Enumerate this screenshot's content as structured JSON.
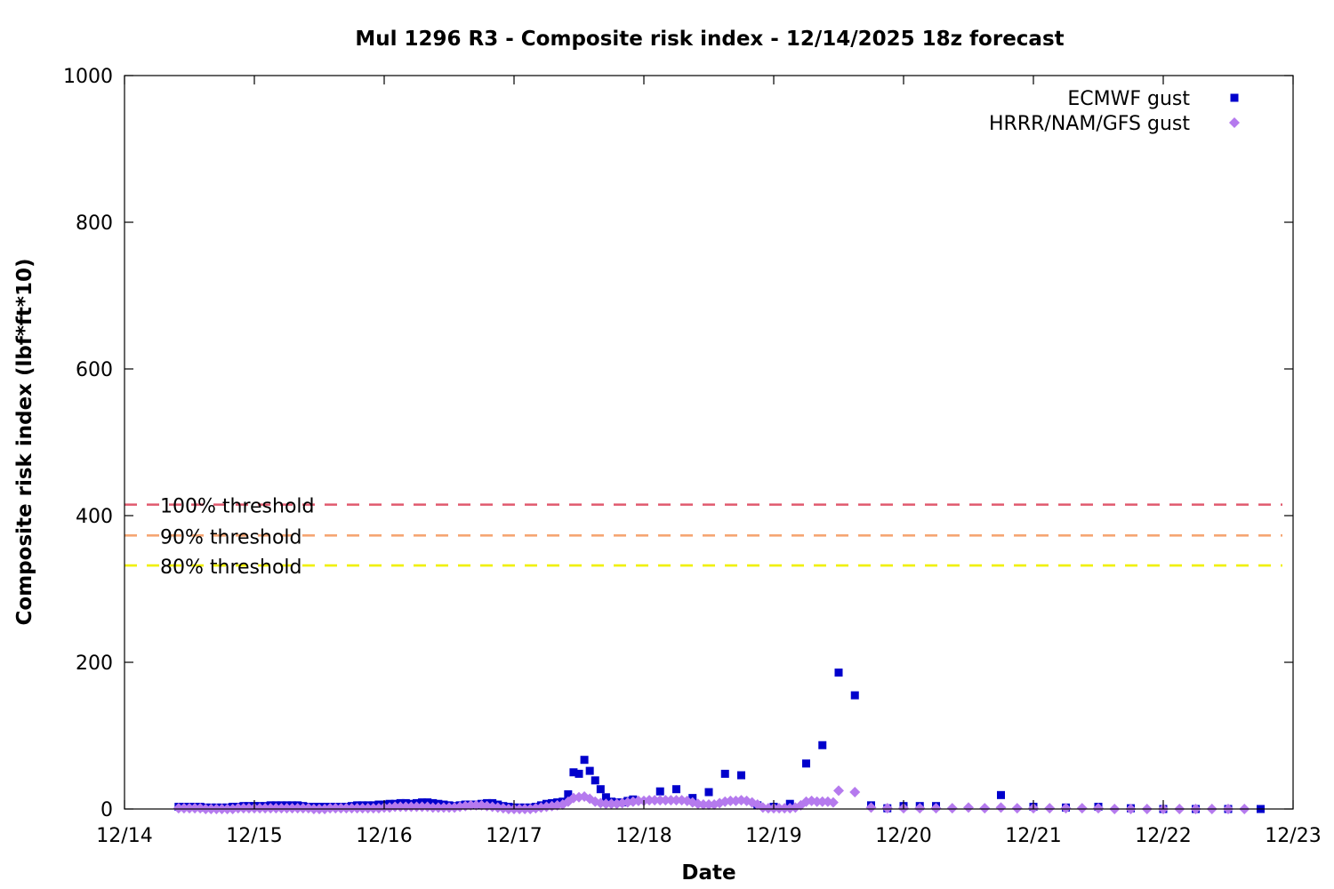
{
  "chart_data": {
    "type": "scatter",
    "title": "Mul 1296 R3 - Composite risk index - 12/14/2025 18z forecast",
    "xlabel": "Date",
    "ylabel": "Composite risk index (lbf*ft*10)",
    "x_unit": "days",
    "x_tick_labels": [
      "12/14",
      "12/15",
      "12/16",
      "12/17",
      "12/18",
      "12/19",
      "12/20",
      "12/21",
      "12/22",
      "12/23"
    ],
    "xlim": [
      "12/14 00z",
      "12/23 00z"
    ],
    "ylim": [
      0,
      1000
    ],
    "y_ticks": [
      0,
      200,
      400,
      600,
      800,
      1000
    ],
    "grid": false,
    "legend_position": "top-right",
    "thresholds": [
      {
        "label": "100% threshold",
        "value": 415,
        "color": "#e05a6e"
      },
      {
        "label": "90% threshold",
        "value": 373,
        "color": "#f5a673"
      },
      {
        "label": "80% threshold",
        "value": 332,
        "color": "#f0f000"
      }
    ],
    "series": [
      {
        "name": "ECMWF gust",
        "marker": "square",
        "color": "#0000cc",
        "points": [
          [
            "12/14 10z",
            3
          ],
          [
            "12/14 11z",
            3
          ],
          [
            "12/14 12z",
            3
          ],
          [
            "12/14 13z",
            3
          ],
          [
            "12/14 14z",
            3
          ],
          [
            "12/14 15z",
            2
          ],
          [
            "12/14 16z",
            2
          ],
          [
            "12/14 17z",
            2
          ],
          [
            "12/14 18z",
            2
          ],
          [
            "12/14 19z",
            2
          ],
          [
            "12/14 20z",
            3
          ],
          [
            "12/14 21z",
            3
          ],
          [
            "12/14 22z",
            4
          ],
          [
            "12/14 23z",
            4
          ],
          [
            "12/15 00z",
            4
          ],
          [
            "12/15 01z",
            4
          ],
          [
            "12/15 02z",
            4
          ],
          [
            "12/15 03z",
            5
          ],
          [
            "12/15 04z",
            5
          ],
          [
            "12/15 05z",
            5
          ],
          [
            "12/15 06z",
            5
          ],
          [
            "12/15 07z",
            5
          ],
          [
            "12/15 08z",
            5
          ],
          [
            "12/15 09z",
            4
          ],
          [
            "12/15 10z",
            3
          ],
          [
            "12/15 11z",
            3
          ],
          [
            "12/15 12z",
            3
          ],
          [
            "12/15 13z",
            3
          ],
          [
            "12/15 14z",
            3
          ],
          [
            "12/15 15z",
            3
          ],
          [
            "12/15 16z",
            3
          ],
          [
            "12/15 17z",
            3
          ],
          [
            "12/15 18z",
            4
          ],
          [
            "12/15 19z",
            5
          ],
          [
            "12/15 20z",
            5
          ],
          [
            "12/15 21z",
            5
          ],
          [
            "12/15 22z",
            5
          ],
          [
            "12/15 23z",
            6
          ],
          [
            "12/16 00z",
            6
          ],
          [
            "12/16 01z",
            7
          ],
          [
            "12/16 02z",
            7
          ],
          [
            "12/16 03z",
            8
          ],
          [
            "12/16 04z",
            8
          ],
          [
            "12/16 05z",
            7
          ],
          [
            "12/16 06z",
            8
          ],
          [
            "12/16 07z",
            9
          ],
          [
            "12/16 08z",
            9
          ],
          [
            "12/16 09z",
            8
          ],
          [
            "12/16 10z",
            7
          ],
          [
            "12/16 11z",
            6
          ],
          [
            "12/16 12z",
            5
          ],
          [
            "12/16 13z",
            4
          ],
          [
            "12/16 14z",
            5
          ],
          [
            "12/16 15z",
            6
          ],
          [
            "12/16 16z",
            6
          ],
          [
            "12/16 17z",
            6
          ],
          [
            "12/16 18z",
            7
          ],
          [
            "12/16 19z",
            8
          ],
          [
            "12/16 20z",
            8
          ],
          [
            "12/16 21z",
            6
          ],
          [
            "12/16 22z",
            4
          ],
          [
            "12/16 23z",
            3
          ],
          [
            "12/17 00z",
            2
          ],
          [
            "12/17 01z",
            2
          ],
          [
            "12/17 02z",
            2
          ],
          [
            "12/17 03z",
            2
          ],
          [
            "12/17 04z",
            3
          ],
          [
            "12/17 05z",
            5
          ],
          [
            "12/17 06z",
            7
          ],
          [
            "12/17 07z",
            8
          ],
          [
            "12/17 08z",
            9
          ],
          [
            "12/17 09z",
            10
          ],
          [
            "12/17 10z",
            20
          ],
          [
            "12/17 11z",
            50
          ],
          [
            "12/17 12z",
            48
          ],
          [
            "12/17 13z",
            67
          ],
          [
            "12/17 14z",
            52
          ],
          [
            "12/17 15z",
            39
          ],
          [
            "12/17 16z",
            27
          ],
          [
            "12/17 17z",
            16
          ],
          [
            "12/17 18z",
            10
          ],
          [
            "12/17 19z",
            9
          ],
          [
            "12/17 20z",
            9
          ],
          [
            "12/17 21z",
            11
          ],
          [
            "12/17 22z",
            13
          ],
          [
            "12/18 03z",
            24
          ],
          [
            "12/18 06z",
            27
          ],
          [
            "12/18 09z",
            15
          ],
          [
            "12/18 12z",
            23
          ],
          [
            "12/18 15z",
            48
          ],
          [
            "12/18 18z",
            46
          ],
          [
            "12/18 21z",
            5
          ],
          [
            "12/19 00z",
            3
          ],
          [
            "12/19 03z",
            7
          ],
          [
            "12/19 06z",
            62
          ],
          [
            "12/19 09z",
            87
          ],
          [
            "12/19 12z",
            186
          ],
          [
            "12/19 15z",
            155
          ],
          [
            "12/19 18z",
            5
          ],
          [
            "12/19 21z",
            1
          ],
          [
            "12/20 00z",
            4
          ],
          [
            "12/20 03z",
            4
          ],
          [
            "12/20 06z",
            4
          ],
          [
            "12/20 18z",
            19
          ],
          [
            "12/21 00z",
            3
          ],
          [
            "12/21 06z",
            2
          ],
          [
            "12/21 12z",
            3
          ],
          [
            "12/21 18z",
            1
          ],
          [
            "12/22 00z",
            0
          ],
          [
            "12/22 06z",
            0
          ],
          [
            "12/22 12z",
            0
          ],
          [
            "12/22 18z",
            0
          ]
        ]
      },
      {
        "name": "HRRR/NAM/GFS gust",
        "marker": "diamond",
        "color": "#b57aee",
        "points": [
          [
            "12/14 10z",
            1
          ],
          [
            "12/14 11z",
            1
          ],
          [
            "12/14 12z",
            1
          ],
          [
            "12/14 13z",
            1
          ],
          [
            "12/14 14z",
            1
          ],
          [
            "12/14 15z",
            0
          ],
          [
            "12/14 16z",
            0
          ],
          [
            "12/14 17z",
            0
          ],
          [
            "12/14 18z",
            0
          ],
          [
            "12/14 19z",
            0
          ],
          [
            "12/14 20z",
            0
          ],
          [
            "12/14 21z",
            1
          ],
          [
            "12/14 22z",
            1
          ],
          [
            "12/14 23z",
            1
          ],
          [
            "12/15 00z",
            1
          ],
          [
            "12/15 01z",
            1
          ],
          [
            "12/15 02z",
            1
          ],
          [
            "12/15 03z",
            1
          ],
          [
            "12/15 04z",
            1
          ],
          [
            "12/15 05z",
            1
          ],
          [
            "12/15 06z",
            1
          ],
          [
            "12/15 07z",
            1
          ],
          [
            "12/15 08z",
            1
          ],
          [
            "12/15 09z",
            1
          ],
          [
            "12/15 10z",
            1
          ],
          [
            "12/15 11z",
            0
          ],
          [
            "12/15 12z",
            0
          ],
          [
            "12/15 13z",
            0
          ],
          [
            "12/15 14z",
            1
          ],
          [
            "12/15 15z",
            1
          ],
          [
            "12/15 16z",
            1
          ],
          [
            "12/15 17z",
            1
          ],
          [
            "12/15 18z",
            1
          ],
          [
            "12/15 19z",
            1
          ],
          [
            "12/15 20z",
            1
          ],
          [
            "12/15 21z",
            1
          ],
          [
            "12/15 22z",
            1
          ],
          [
            "12/15 23z",
            1
          ],
          [
            "12/16 00z",
            2
          ],
          [
            "12/16 01z",
            2
          ],
          [
            "12/16 02z",
            3
          ],
          [
            "12/16 03z",
            3
          ],
          [
            "12/16 04z",
            3
          ],
          [
            "12/16 05z",
            3
          ],
          [
            "12/16 06z",
            3
          ],
          [
            "12/16 07z",
            3
          ],
          [
            "12/16 08z",
            3
          ],
          [
            "12/16 09z",
            2
          ],
          [
            "12/16 10z",
            2
          ],
          [
            "12/16 11z",
            2
          ],
          [
            "12/16 12z",
            2
          ],
          [
            "12/16 13z",
            2
          ],
          [
            "12/16 14z",
            3
          ],
          [
            "12/16 15z",
            4
          ],
          [
            "12/16 16z",
            5
          ],
          [
            "12/16 17z",
            5
          ],
          [
            "12/16 18z",
            5
          ],
          [
            "12/16 19z",
            4
          ],
          [
            "12/16 20z",
            3
          ],
          [
            "12/16 21z",
            2
          ],
          [
            "12/16 22z",
            1
          ],
          [
            "12/16 23z",
            0
          ],
          [
            "12/17 00z",
            0
          ],
          [
            "12/17 01z",
            0
          ],
          [
            "12/17 02z",
            0
          ],
          [
            "12/17 03z",
            0
          ],
          [
            "12/17 04z",
            1
          ],
          [
            "12/17 05z",
            2
          ],
          [
            "12/17 06z",
            3
          ],
          [
            "12/17 07z",
            4
          ],
          [
            "12/17 08z",
            5
          ],
          [
            "12/17 09z",
            6
          ],
          [
            "12/17 10z",
            10
          ],
          [
            "12/17 11z",
            15
          ],
          [
            "12/17 12z",
            16
          ],
          [
            "12/17 13z",
            17
          ],
          [
            "12/17 14z",
            14
          ],
          [
            "12/17 15z",
            10
          ],
          [
            "12/17 16z",
            8
          ],
          [
            "12/17 17z",
            7
          ],
          [
            "12/17 18z",
            7
          ],
          [
            "12/17 19z",
            7
          ],
          [
            "12/17 20z",
            8
          ],
          [
            "12/17 21z",
            9
          ],
          [
            "12/17 22z",
            10
          ],
          [
            "12/17 23z",
            11
          ],
          [
            "12/18 00z",
            11
          ],
          [
            "12/18 01z",
            12
          ],
          [
            "12/18 02z",
            12
          ],
          [
            "12/18 03z",
            12
          ],
          [
            "12/18 04z",
            12
          ],
          [
            "12/18 05z",
            12
          ],
          [
            "12/18 06z",
            12
          ],
          [
            "12/18 07z",
            12
          ],
          [
            "12/18 08z",
            11
          ],
          [
            "12/18 09z",
            9
          ],
          [
            "12/18 10z",
            7
          ],
          [
            "12/18 11z",
            6
          ],
          [
            "12/18 12z",
            6
          ],
          [
            "12/18 13z",
            6
          ],
          [
            "12/18 14z",
            8
          ],
          [
            "12/18 15z",
            10
          ],
          [
            "12/18 16z",
            11
          ],
          [
            "12/18 17z",
            11
          ],
          [
            "12/18 18z",
            12
          ],
          [
            "12/18 19z",
            11
          ],
          [
            "12/18 20z",
            9
          ],
          [
            "12/18 21z",
            6
          ],
          [
            "12/18 22z",
            2
          ],
          [
            "12/18 23z",
            1
          ],
          [
            "12/19 00z",
            1
          ],
          [
            "12/19 01z",
            1
          ],
          [
            "12/19 02z",
            1
          ],
          [
            "12/19 03z",
            1
          ],
          [
            "12/19 04z",
            2
          ],
          [
            "12/19 05z",
            5
          ],
          [
            "12/19 06z",
            10
          ],
          [
            "12/19 07z",
            11
          ],
          [
            "12/19 08z",
            10
          ],
          [
            "12/19 09z",
            10
          ],
          [
            "12/19 10z",
            10
          ],
          [
            "12/19 11z",
            9
          ],
          [
            "12/19 12z",
            25
          ],
          [
            "12/19 15z",
            23
          ],
          [
            "12/19 18z",
            2
          ],
          [
            "12/19 21z",
            1
          ],
          [
            "12/20 00z",
            1
          ],
          [
            "12/20 03z",
            1
          ],
          [
            "12/20 06z",
            1
          ],
          [
            "12/20 09z",
            1
          ],
          [
            "12/20 12z",
            2
          ],
          [
            "12/20 15z",
            1
          ],
          [
            "12/20 18z",
            2
          ],
          [
            "12/20 21z",
            1
          ],
          [
            "12/21 00z",
            1
          ],
          [
            "12/21 03z",
            1
          ],
          [
            "12/21 06z",
            1
          ],
          [
            "12/21 09z",
            1
          ],
          [
            "12/21 12z",
            1
          ],
          [
            "12/21 15z",
            0
          ],
          [
            "12/21 18z",
            0
          ],
          [
            "12/21 21z",
            0
          ],
          [
            "12/22 00z",
            0
          ],
          [
            "12/22 03z",
            0
          ],
          [
            "12/22 06z",
            0
          ],
          [
            "12/22 09z",
            0
          ],
          [
            "12/22 12z",
            0
          ],
          [
            "12/22 15z",
            0
          ]
        ]
      }
    ]
  }
}
